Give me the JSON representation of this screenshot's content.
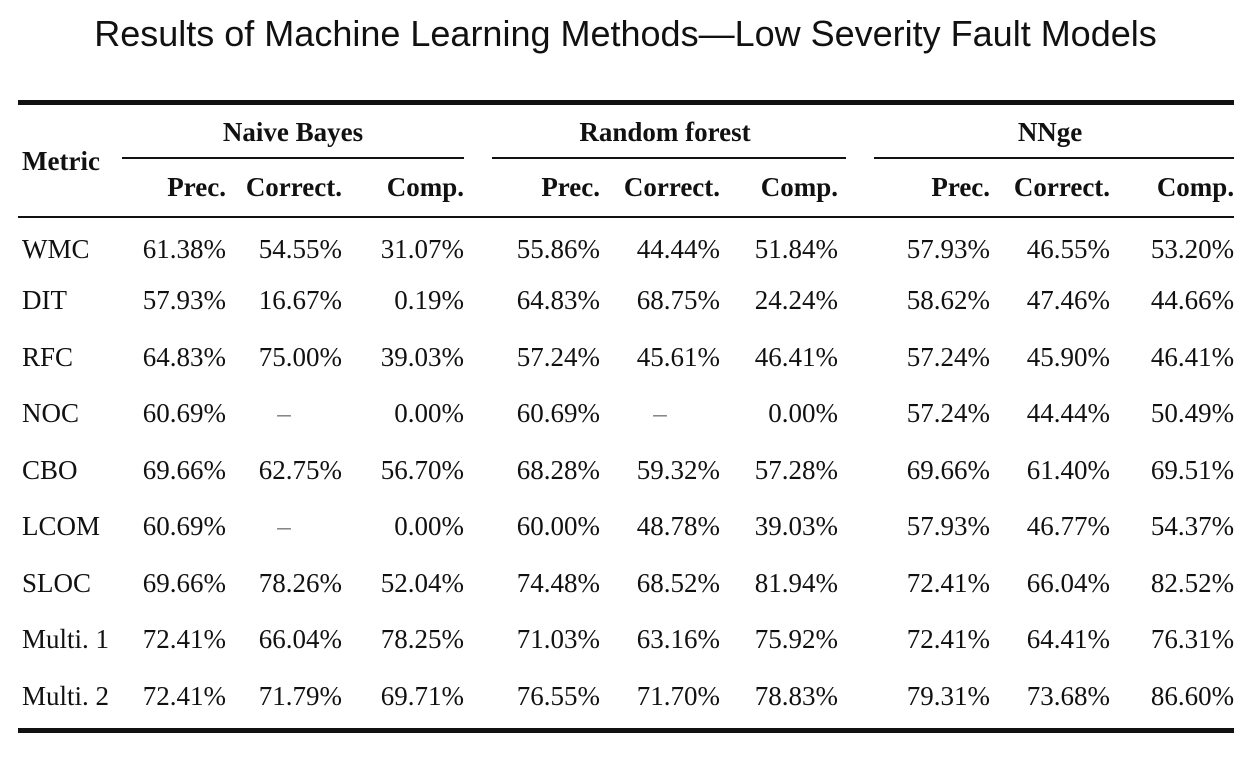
{
  "title": "Results of Machine Learning Methods—Low Severity Fault Models",
  "table": {
    "metric_header": "Metric",
    "groups": [
      {
        "label": "Naive Bayes",
        "columns": [
          "Prec.",
          "Correct.",
          "Comp."
        ]
      },
      {
        "label": "Random forest",
        "columns": [
          "Prec.",
          "Correct.",
          "Comp."
        ]
      },
      {
        "label": "NNge",
        "columns": [
          "Prec.",
          "Correct.",
          "Comp."
        ]
      }
    ],
    "rows": [
      {
        "metric": "WMC",
        "values": [
          "61.38%",
          "54.55%",
          "31.07%",
          "55.86%",
          "44.44%",
          "51.84%",
          "57.93%",
          "46.55%",
          "53.20%"
        ]
      },
      {
        "metric": "DIT",
        "values": [
          "57.93%",
          "16.67%",
          "0.19%",
          "64.83%",
          "68.75%",
          "24.24%",
          "58.62%",
          "47.46%",
          "44.66%"
        ]
      },
      {
        "metric": "RFC",
        "values": [
          "64.83%",
          "75.00%",
          "39.03%",
          "57.24%",
          "45.61%",
          "46.41%",
          "57.24%",
          "45.90%",
          "46.41%"
        ]
      },
      {
        "metric": "NOC",
        "values": [
          "60.69%",
          "–",
          "0.00%",
          "60.69%",
          "–",
          "0.00%",
          "57.24%",
          "44.44%",
          "50.49%"
        ]
      },
      {
        "metric": "CBO",
        "values": [
          "69.66%",
          "62.75%",
          "56.70%",
          "68.28%",
          "59.32%",
          "57.28%",
          "69.66%",
          "61.40%",
          "69.51%"
        ]
      },
      {
        "metric": "LCOM",
        "values": [
          "60.69%",
          "–",
          "0.00%",
          "60.00%",
          "48.78%",
          "39.03%",
          "57.93%",
          "46.77%",
          "54.37%"
        ]
      },
      {
        "metric": "SLOC",
        "values": [
          "69.66%",
          "78.26%",
          "52.04%",
          "74.48%",
          "68.52%",
          "81.94%",
          "72.41%",
          "66.04%",
          "82.52%"
        ]
      },
      {
        "metric": "Multi. 1",
        "values": [
          "72.41%",
          "66.04%",
          "78.25%",
          "71.03%",
          "63.16%",
          "75.92%",
          "72.41%",
          "64.41%",
          "76.31%"
        ]
      },
      {
        "metric": "Multi. 2",
        "values": [
          "72.41%",
          "71.79%",
          "69.71%",
          "76.55%",
          "71.70%",
          "78.83%",
          "79.31%",
          "73.68%",
          "86.60%"
        ]
      }
    ]
  }
}
